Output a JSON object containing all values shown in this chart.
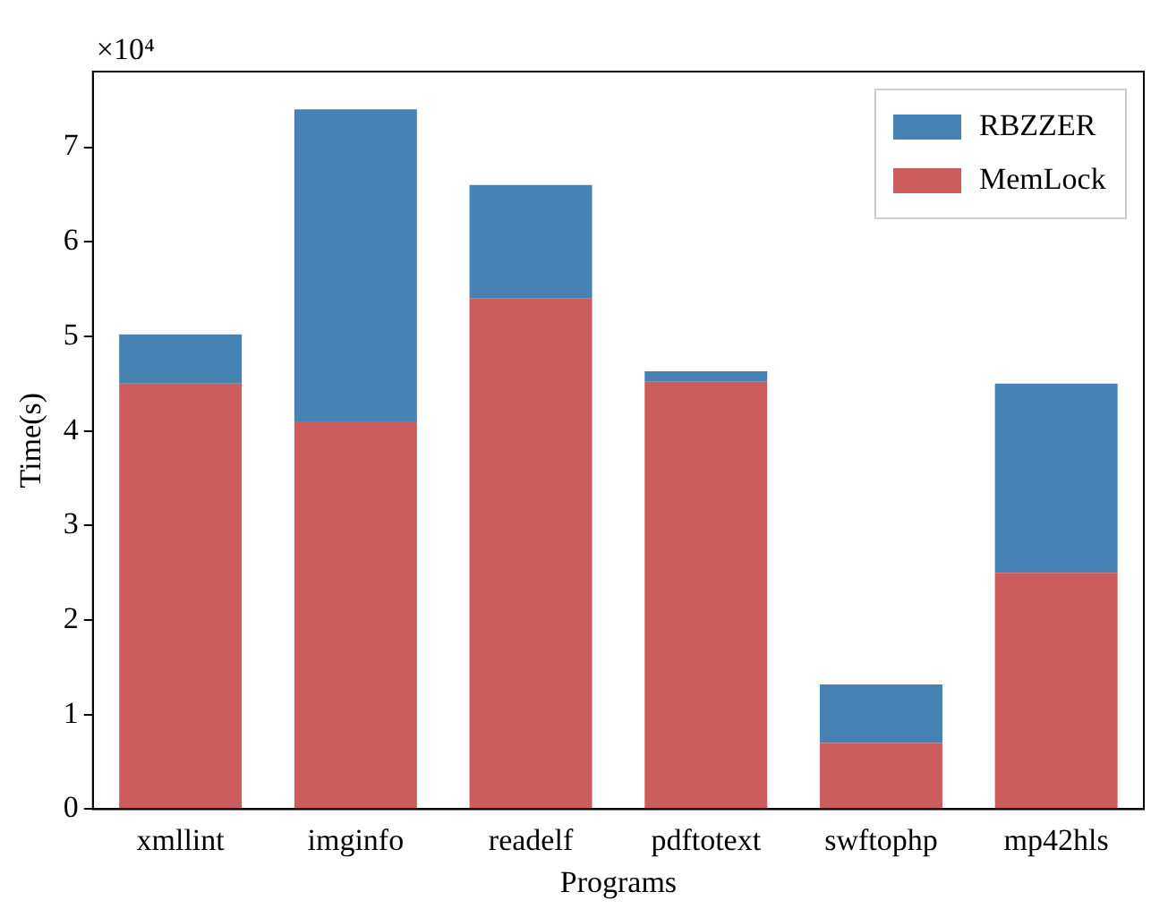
{
  "chart_data": {
    "type": "bar",
    "stacked": true,
    "xlabel": "Programs",
    "ylabel": "Time(s)",
    "categories": [
      "xmllint",
      "imginfo",
      "readelf",
      "pdftotext",
      "swftophp",
      "mp42hls"
    ],
    "series": [
      {
        "name": "MemLock",
        "color": "#cd5c5c",
        "values": [
          4.5,
          4.1,
          5.4,
          4.52,
          0.7,
          2.5
        ]
      },
      {
        "name": "RBZZER",
        "color": "#4682b4",
        "values": [
          0.52,
          3.3,
          1.2,
          0.11,
          0.62,
          2.0
        ]
      }
    ],
    "ylim": [
      0,
      7.8
    ],
    "yticks": [
      0,
      1,
      2,
      3,
      4,
      5,
      6,
      7
    ],
    "annotations": [
      "×10⁴"
    ],
    "grid": false,
    "legend": "top right"
  }
}
